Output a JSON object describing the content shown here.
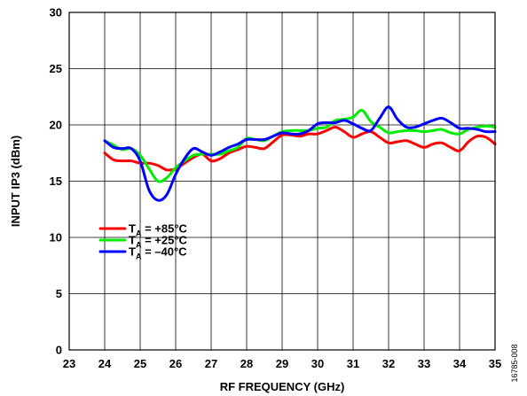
{
  "chart_data": {
    "type": "line",
    "xlabel": "RF FREQUENCY (GHz)",
    "ylabel": "INPUT IP3 (dBm)",
    "xlim": [
      23,
      35
    ],
    "ylim": [
      0,
      30
    ],
    "xticks": [
      23,
      24,
      25,
      26,
      27,
      28,
      29,
      30,
      31,
      32,
      33,
      34,
      35
    ],
    "yticks": [
      0,
      5,
      10,
      15,
      20,
      25,
      30
    ],
    "grid": true,
    "legend_position": "left-middle",
    "figure_id": "16785-008",
    "series": [
      {
        "name": "TA = +85°C",
        "legend_parts": [
          "T",
          "A",
          " = +85°C"
        ],
        "color": "#ff0000",
        "x": [
          24,
          24.25,
          24.5,
          24.75,
          25,
          25.25,
          25.5,
          25.75,
          26,
          26.25,
          26.5,
          26.75,
          27,
          27.25,
          27.5,
          27.75,
          28,
          28.25,
          28.5,
          28.75,
          29,
          29.25,
          29.5,
          29.75,
          30,
          30.25,
          30.5,
          30.75,
          31,
          31.25,
          31.5,
          31.75,
          32,
          32.25,
          32.5,
          32.75,
          33,
          33.25,
          33.5,
          33.75,
          34,
          34.25,
          34.5,
          34.75,
          35
        ],
        "y": [
          17.5,
          16.9,
          16.8,
          16.8,
          16.6,
          16.6,
          16.4,
          16.0,
          16.1,
          16.6,
          17.1,
          17.4,
          16.8,
          17.0,
          17.5,
          17.8,
          18.1,
          18.0,
          17.9,
          18.5,
          19.1,
          19.1,
          19.0,
          19.2,
          19.2,
          19.5,
          19.8,
          19.4,
          18.9,
          19.2,
          19.4,
          18.9,
          18.4,
          18.5,
          18.6,
          18.3,
          18.0,
          18.3,
          18.4,
          18.0,
          17.7,
          18.5,
          19.0,
          18.9,
          18.3
        ]
      },
      {
        "name": "TA = +25°C",
        "legend_parts": [
          "T",
          "A",
          " = +25°C"
        ],
        "color": "#00ee00",
        "x": [
          24,
          24.25,
          24.5,
          24.75,
          25,
          25.25,
          25.5,
          25.75,
          26,
          26.25,
          26.5,
          26.75,
          27,
          27.25,
          27.5,
          27.75,
          28,
          28.25,
          28.5,
          28.75,
          29,
          29.25,
          29.5,
          29.75,
          30,
          30.25,
          30.5,
          30.75,
          31,
          31.25,
          31.5,
          31.75,
          32,
          32.25,
          32.5,
          32.75,
          33,
          33.25,
          33.5,
          33.75,
          34,
          34.25,
          34.5,
          34.75,
          35
        ],
        "y": [
          18.6,
          18.2,
          17.8,
          17.9,
          17.3,
          16.1,
          15.0,
          15.3,
          16.2,
          16.8,
          17.3,
          17.4,
          17.4,
          17.4,
          17.7,
          18.0,
          18.8,
          18.7,
          18.6,
          19.0,
          19.4,
          19.5,
          19.5,
          19.5,
          19.7,
          19.8,
          20.4,
          20.5,
          20.7,
          21.3,
          20.3,
          19.8,
          19.3,
          19.4,
          19.5,
          19.5,
          19.4,
          19.5,
          19.6,
          19.3,
          19.2,
          19.6,
          19.8,
          19.9,
          19.8
        ]
      },
      {
        "name": "TA = –40°C",
        "legend_parts": [
          "T",
          "A",
          " = –40°C"
        ],
        "color": "#0000ff",
        "x": [
          24,
          24.25,
          24.5,
          24.75,
          25,
          25.25,
          25.5,
          25.75,
          26,
          26.25,
          26.5,
          26.75,
          27,
          27.25,
          27.5,
          27.75,
          28,
          28.25,
          28.5,
          28.75,
          29,
          29.25,
          29.5,
          29.75,
          30,
          30.25,
          30.5,
          30.75,
          31,
          31.25,
          31.5,
          31.75,
          32,
          32.25,
          32.5,
          32.75,
          33,
          33.25,
          33.5,
          33.75,
          34,
          34.25,
          34.5,
          34.75,
          35
        ],
        "y": [
          18.6,
          18.0,
          17.9,
          17.9,
          16.8,
          14.2,
          13.3,
          13.8,
          15.6,
          17.0,
          17.9,
          17.6,
          17.3,
          17.6,
          18.0,
          18.3,
          18.7,
          18.7,
          18.7,
          19.0,
          19.3,
          19.2,
          19.2,
          19.5,
          20.1,
          20.2,
          20.2,
          20.4,
          20.1,
          19.7,
          19.5,
          20.6,
          21.6,
          20.5,
          19.8,
          19.8,
          20.1,
          20.4,
          20.6,
          20.2,
          19.7,
          19.7,
          19.6,
          19.4,
          19.4
        ]
      }
    ]
  }
}
